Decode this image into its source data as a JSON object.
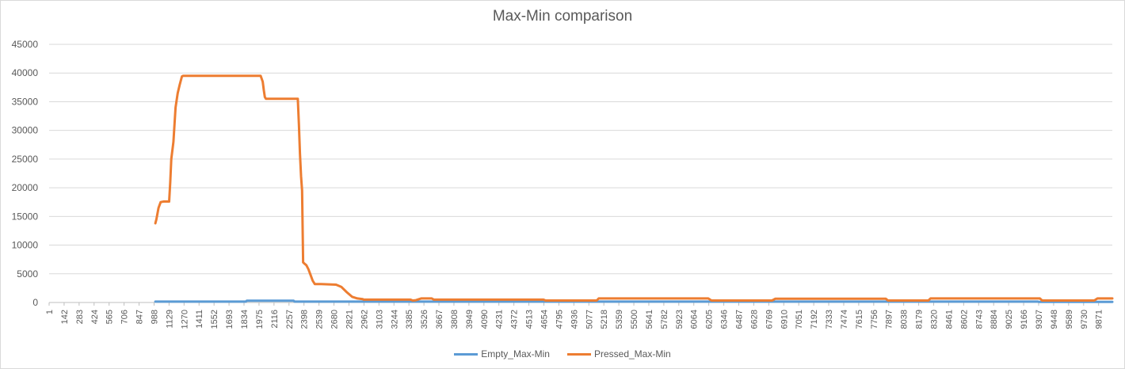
{
  "chart_data": {
    "type": "line",
    "title": "Max-Min comparison",
    "xlabel": "",
    "ylabel": "",
    "ylim": [
      0,
      45000
    ],
    "y_ticks": [
      0,
      5000,
      10000,
      15000,
      20000,
      25000,
      30000,
      35000,
      40000,
      45000
    ],
    "x_range": [
      1,
      10000
    ],
    "x_tick_labels": [
      "1",
      "142",
      "283",
      "424",
      "565",
      "706",
      "847",
      "988",
      "1129",
      "1270",
      "1411",
      "1552",
      "1693",
      "1834",
      "1975",
      "2116",
      "2257",
      "2398",
      "2539",
      "2680",
      "2821",
      "2962",
      "3103",
      "3244",
      "3385",
      "3526",
      "3667",
      "3808",
      "3949",
      "4090",
      "4231",
      "4372",
      "4513",
      "4654",
      "4795",
      "4936",
      "5077",
      "5218",
      "5359",
      "5500",
      "5641",
      "5782",
      "5923",
      "6064",
      "6205",
      "6346",
      "6487",
      "6628",
      "6769",
      "6910",
      "7051",
      "7192",
      "7333",
      "7474",
      "7615",
      "7756",
      "7897",
      "8038",
      "8179",
      "8320",
      "8461",
      "8602",
      "8743",
      "8884",
      "9025",
      "9166",
      "9307",
      "9448",
      "9589",
      "9730",
      "9871"
    ],
    "grid": true,
    "legend_position": "bottom",
    "series": [
      {
        "name": "Empty_Max-Min",
        "color": "#5b9bd5",
        "x": [
          1000,
          1850,
          1860,
          2300,
          2310,
          9300,
          9310,
          10000
        ],
        "y": [
          150,
          150,
          300,
          300,
          150,
          150,
          100,
          100
        ]
      },
      {
        "name": "Pressed_Max-Min",
        "color": "#ed7d31",
        "x": [
          1000,
          1010,
          1030,
          1050,
          1080,
          1130,
          1140,
          1150,
          1170,
          1190,
          1210,
          1230,
          1250,
          1260,
          1900,
          1990,
          2010,
          2020,
          2030,
          2040,
          2340,
          2350,
          2360,
          2370,
          2380,
          2390,
          2400,
          2420,
          2440,
          2460,
          2480,
          2500,
          2520,
          2540,
          2560,
          2700,
          2750,
          2800,
          2850,
          2900,
          2950,
          2960,
          3400,
          3420,
          3450,
          3500,
          3600,
          3620,
          4650,
          4670,
          5150,
          5170,
          6200,
          6230,
          6800,
          6830,
          7870,
          7890,
          8270,
          8290,
          9320,
          9340,
          9830,
          9860,
          10000
        ],
        "y": [
          13800,
          14500,
          16500,
          17500,
          17600,
          17600,
          21000,
          25000,
          28000,
          34000,
          36500,
          38000,
          39400,
          39500,
          39500,
          39500,
          38500,
          37000,
          35800,
          35500,
          35500,
          31000,
          26000,
          22000,
          19500,
          7000,
          6800,
          6500,
          5800,
          4800,
          3800,
          3200,
          3200,
          3200,
          3200,
          3100,
          2700,
          1800,
          1000,
          700,
          600,
          500,
          500,
          350,
          400,
          700,
          700,
          500,
          500,
          350,
          350,
          700,
          700,
          350,
          350,
          650,
          650,
          350,
          350,
          700,
          700,
          350,
          350,
          700,
          700
        ]
      }
    ]
  }
}
